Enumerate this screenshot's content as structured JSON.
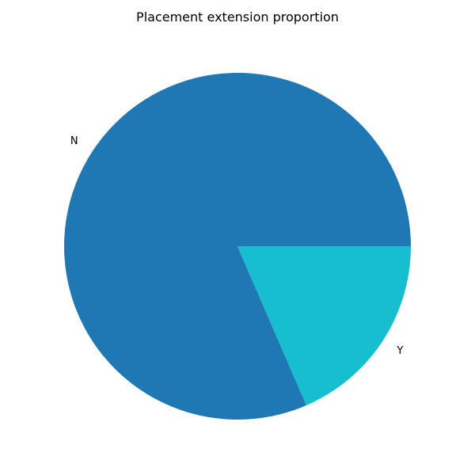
{
  "chart_data": {
    "type": "pie",
    "title": "Placement extension proportion",
    "categories": [
      "N",
      "Y"
    ],
    "values": [
      81.5,
      18.5
    ],
    "colors": [
      "#1f77b4",
      "#17becf"
    ],
    "start_angle_deg": 0,
    "direction": "counterclockwise",
    "legend": "none"
  }
}
